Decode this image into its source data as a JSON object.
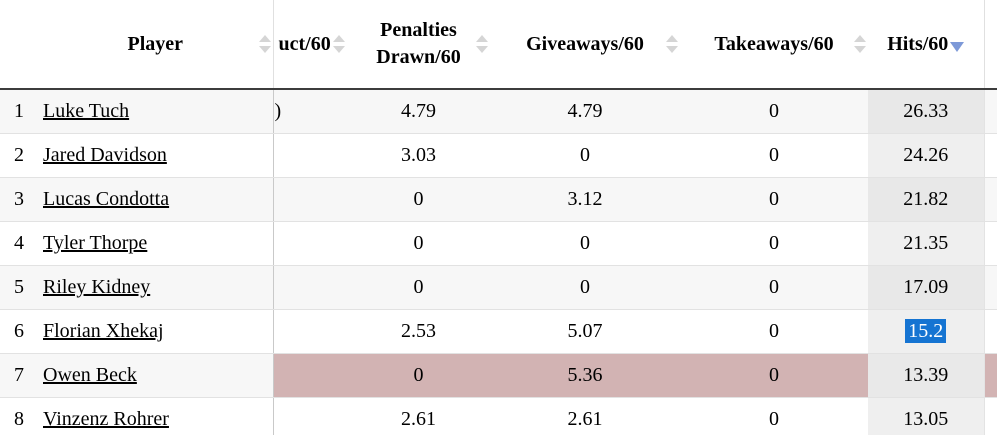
{
  "table": {
    "columns": [
      {
        "key": "rank",
        "label": ""
      },
      {
        "key": "player",
        "label": "Player",
        "sortable": true
      },
      {
        "key": "misconduct",
        "label": "uct/60",
        "sortable": true
      },
      {
        "key": "penalties_drawn",
        "label": "Penalties Drawn/60",
        "label_line1": "Penalties",
        "label_line2": "Drawn/60",
        "sortable": true
      },
      {
        "key": "giveaways",
        "label": "Giveaways/60",
        "sortable": true
      },
      {
        "key": "takeaways",
        "label": "Takeaways/60",
        "sortable": true
      },
      {
        "key": "hits",
        "label": "Hits/60",
        "sortable": true,
        "sorted": "desc"
      },
      {
        "key": "extra",
        "label": ""
      }
    ],
    "rows": [
      {
        "rank": "1",
        "player": "Luke Tuch",
        "misconduct": ")",
        "penalties_drawn": "4.79",
        "giveaways": "4.79",
        "takeaways": "0",
        "hits": "26.33"
      },
      {
        "rank": "2",
        "player": "Jared Davidson",
        "misconduct": "",
        "penalties_drawn": "3.03",
        "giveaways": "0",
        "takeaways": "0",
        "hits": "24.26"
      },
      {
        "rank": "3",
        "player": "Lucas Condotta",
        "misconduct": "",
        "penalties_drawn": "0",
        "giveaways": "3.12",
        "takeaways": "0",
        "hits": "21.82"
      },
      {
        "rank": "4",
        "player": "Tyler Thorpe",
        "misconduct": "",
        "penalties_drawn": "0",
        "giveaways": "0",
        "takeaways": "0",
        "hits": "21.35"
      },
      {
        "rank": "5",
        "player": "Riley Kidney",
        "misconduct": "",
        "penalties_drawn": "0",
        "giveaways": "0",
        "takeaways": "0",
        "hits": "17.09"
      },
      {
        "rank": "6",
        "player": "Florian Xhekaj",
        "misconduct": "",
        "penalties_drawn": "2.53",
        "giveaways": "5.07",
        "takeaways": "0",
        "hits": "15.2",
        "hits_selected": true
      },
      {
        "rank": "7",
        "player": "Owen Beck",
        "misconduct": "",
        "penalties_drawn": "0",
        "giveaways": "5.36",
        "takeaways": "0",
        "hits": "13.39",
        "highlight": "pink"
      },
      {
        "rank": "8",
        "player": "Vinzenz Rohrer",
        "misconduct": "",
        "penalties_drawn": "2.61",
        "giveaways": "2.61",
        "takeaways": "0",
        "hits": "13.05"
      }
    ],
    "colors": {
      "row_stripe": "#f7f7f7",
      "row_highlight_pink": "#d2b3b3",
      "sorted_column_bg": "#efefef",
      "selection_bg": "#1574d2",
      "selection_text": "#ffffff",
      "sort_icon_gray": "#d5d5d5",
      "sort_icon_active_blue": "#7d99d8",
      "header_bottom_border": "#3c3c3c",
      "row_border": "#e2e2e2",
      "column_border": "#c9c9c9"
    }
  }
}
